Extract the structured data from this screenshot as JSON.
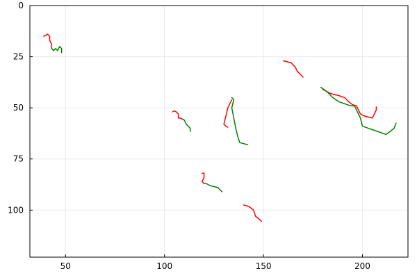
{
  "chart_data": {
    "type": "line",
    "title": "",
    "xlabel": "",
    "ylabel": "",
    "xlim": [
      32,
      223
    ],
    "ylim": [
      0,
      123
    ],
    "y_reversed": true,
    "grid": true,
    "legend": "none",
    "x_ticks": [
      50,
      100,
      150,
      200
    ],
    "y_ticks": [
      0,
      25,
      50,
      75,
      100
    ],
    "x_tick_labels": [
      "50",
      "100",
      "150",
      "200"
    ],
    "y_tick_labels": [
      "0",
      "25",
      "50",
      "75",
      "100"
    ],
    "series": [
      {
        "color": "#ff0000",
        "points": [
          [
            39,
            15
          ],
          [
            40,
            14.5
          ],
          [
            41,
            14
          ],
          [
            42,
            15
          ],
          [
            42,
            17
          ],
          [
            43,
            19
          ],
          [
            43,
            21
          ]
        ]
      },
      {
        "color": "#008000",
        "points": [
          [
            43,
            21
          ],
          [
            44,
            22
          ],
          [
            45,
            21
          ],
          [
            46,
            22
          ],
          [
            47,
            20
          ],
          [
            48,
            21
          ],
          [
            48,
            23
          ]
        ]
      },
      {
        "color": "#ff0000",
        "points": [
          [
            104,
            52
          ],
          [
            105,
            51.5
          ],
          [
            106,
            52
          ],
          [
            107,
            53
          ],
          [
            107,
            55
          ],
          [
            108,
            55
          ],
          [
            109,
            55.5
          ]
        ]
      },
      {
        "color": "#008000",
        "points": [
          [
            109,
            55.5
          ],
          [
            110,
            56
          ],
          [
            111,
            58
          ],
          [
            112,
            59
          ],
          [
            113,
            60
          ],
          [
            113,
            61.5
          ]
        ]
      },
      {
        "color": "#ff0000",
        "points": [
          [
            134,
            46
          ],
          [
            133,
            48
          ],
          [
            132,
            50
          ],
          [
            131,
            54
          ],
          [
            130,
            58
          ],
          [
            131,
            59
          ],
          [
            132,
            59.5
          ]
        ]
      },
      {
        "color": "#008000",
        "points": [
          [
            134,
            45
          ],
          [
            135,
            46
          ],
          [
            134,
            50
          ],
          [
            135,
            55
          ],
          [
            136,
            60
          ],
          [
            137,
            64
          ],
          [
            138,
            67
          ],
          [
            140,
            67.5
          ],
          [
            142,
            68
          ]
        ]
      },
      {
        "color": "#ff0000",
        "points": [
          [
            119,
            82
          ],
          [
            120,
            82
          ],
          [
            120,
            84
          ],
          [
            119,
            86
          ],
          [
            120,
            87
          ]
        ]
      },
      {
        "color": "#008000",
        "points": [
          [
            120,
            87
          ],
          [
            121,
            87
          ],
          [
            123,
            88
          ],
          [
            125,
            88.5
          ],
          [
            127,
            89
          ],
          [
            128,
            90
          ],
          [
            129,
            91
          ]
        ]
      },
      {
        "color": "#ff0000",
        "points": [
          [
            140,
            97.5
          ],
          [
            142,
            98
          ],
          [
            143,
            98.5
          ],
          [
            145,
            100
          ],
          [
            146,
            103
          ],
          [
            148,
            104.5
          ],
          [
            149,
            105.5
          ]
        ]
      },
      {
        "color": "#ff0000",
        "points": [
          [
            160,
            27
          ],
          [
            162,
            27.5
          ],
          [
            164,
            28
          ],
          [
            166,
            30
          ],
          [
            167,
            32
          ],
          [
            169,
            34
          ],
          [
            170,
            35
          ]
        ]
      },
      {
        "color": "#ff0000",
        "points": [
          [
            180,
            41
          ],
          [
            184,
            43
          ],
          [
            188,
            44
          ],
          [
            191,
            45
          ],
          [
            193,
            47
          ],
          [
            195,
            48.5
          ],
          [
            197,
            49
          ],
          [
            199,
            53
          ],
          [
            201,
            54
          ],
          [
            203,
            54.5
          ],
          [
            205,
            55
          ],
          [
            206,
            53
          ],
          [
            207,
            51
          ],
          [
            207,
            49.5
          ]
        ]
      },
      {
        "color": "#008000",
        "points": [
          [
            179,
            40
          ],
          [
            182,
            42
          ],
          [
            185,
            45
          ],
          [
            188,
            47
          ],
          [
            191,
            48
          ],
          [
            194,
            49
          ],
          [
            196,
            49
          ],
          [
            197,
            51
          ],
          [
            199,
            55
          ],
          [
            200,
            59
          ],
          [
            203,
            60
          ],
          [
            206,
            61
          ],
          [
            209,
            62
          ],
          [
            212,
            63
          ],
          [
            214,
            61.5
          ],
          [
            216,
            60
          ],
          [
            217,
            57.5
          ]
        ]
      }
    ]
  }
}
